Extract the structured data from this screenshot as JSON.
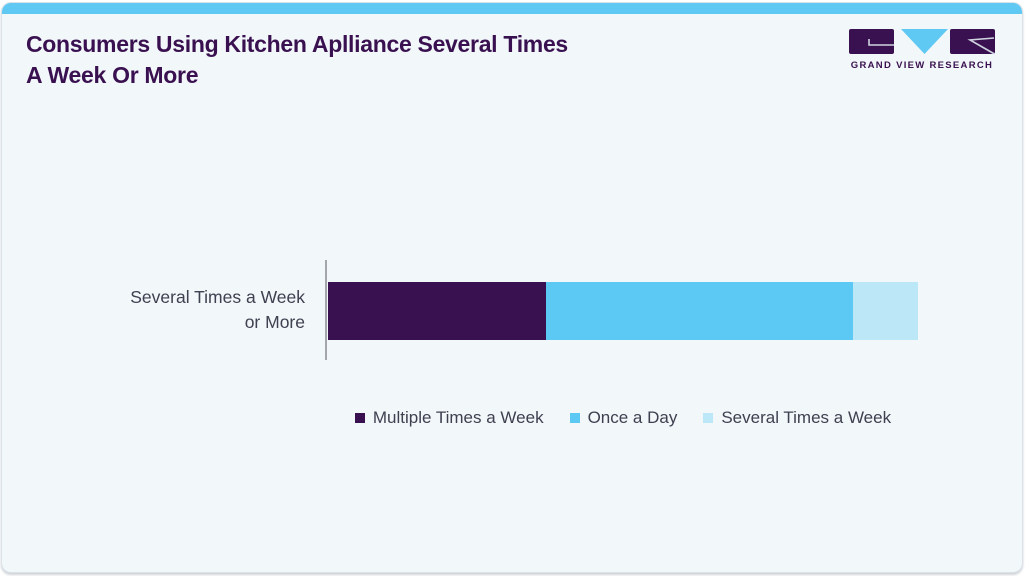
{
  "header": {
    "title_line1": "Consumers Using Kitchen Aplliance Several Times",
    "title_line2": "A Week Or More",
    "logo_text": "GRAND VIEW RESEARCH"
  },
  "colors": {
    "accent_top_strip": "#5FC8F3",
    "title_purple": "#3A1150",
    "card_background": "#F2F7FA",
    "axis_gray": "#A3A7AC",
    "label_text": "#3F4050"
  },
  "chart_data": {
    "type": "bar",
    "orientation": "horizontal",
    "stacked": true,
    "title": "Consumers Using Kitchen Aplliance Several Times A Week Or More",
    "categories": [
      "Several Times a Week or More"
    ],
    "category_label_lines": [
      "Several Times a Week",
      "or More"
    ],
    "series": [
      {
        "name": "Multiple Times a Week",
        "values": [
          37
        ],
        "color": "#3A1150"
      },
      {
        "name": "Once a Day",
        "values": [
          52
        ],
        "color": "#5BC9F4"
      },
      {
        "name": "Several Times a Week",
        "values": [
          11
        ],
        "color": "#BCE7F7"
      }
    ],
    "values_are_percent_estimates": true,
    "xlim": [
      0,
      100
    ],
    "xlabel": "",
    "ylabel": "",
    "grid": false,
    "legend_position": "bottom",
    "data_labels_shown": false
  }
}
